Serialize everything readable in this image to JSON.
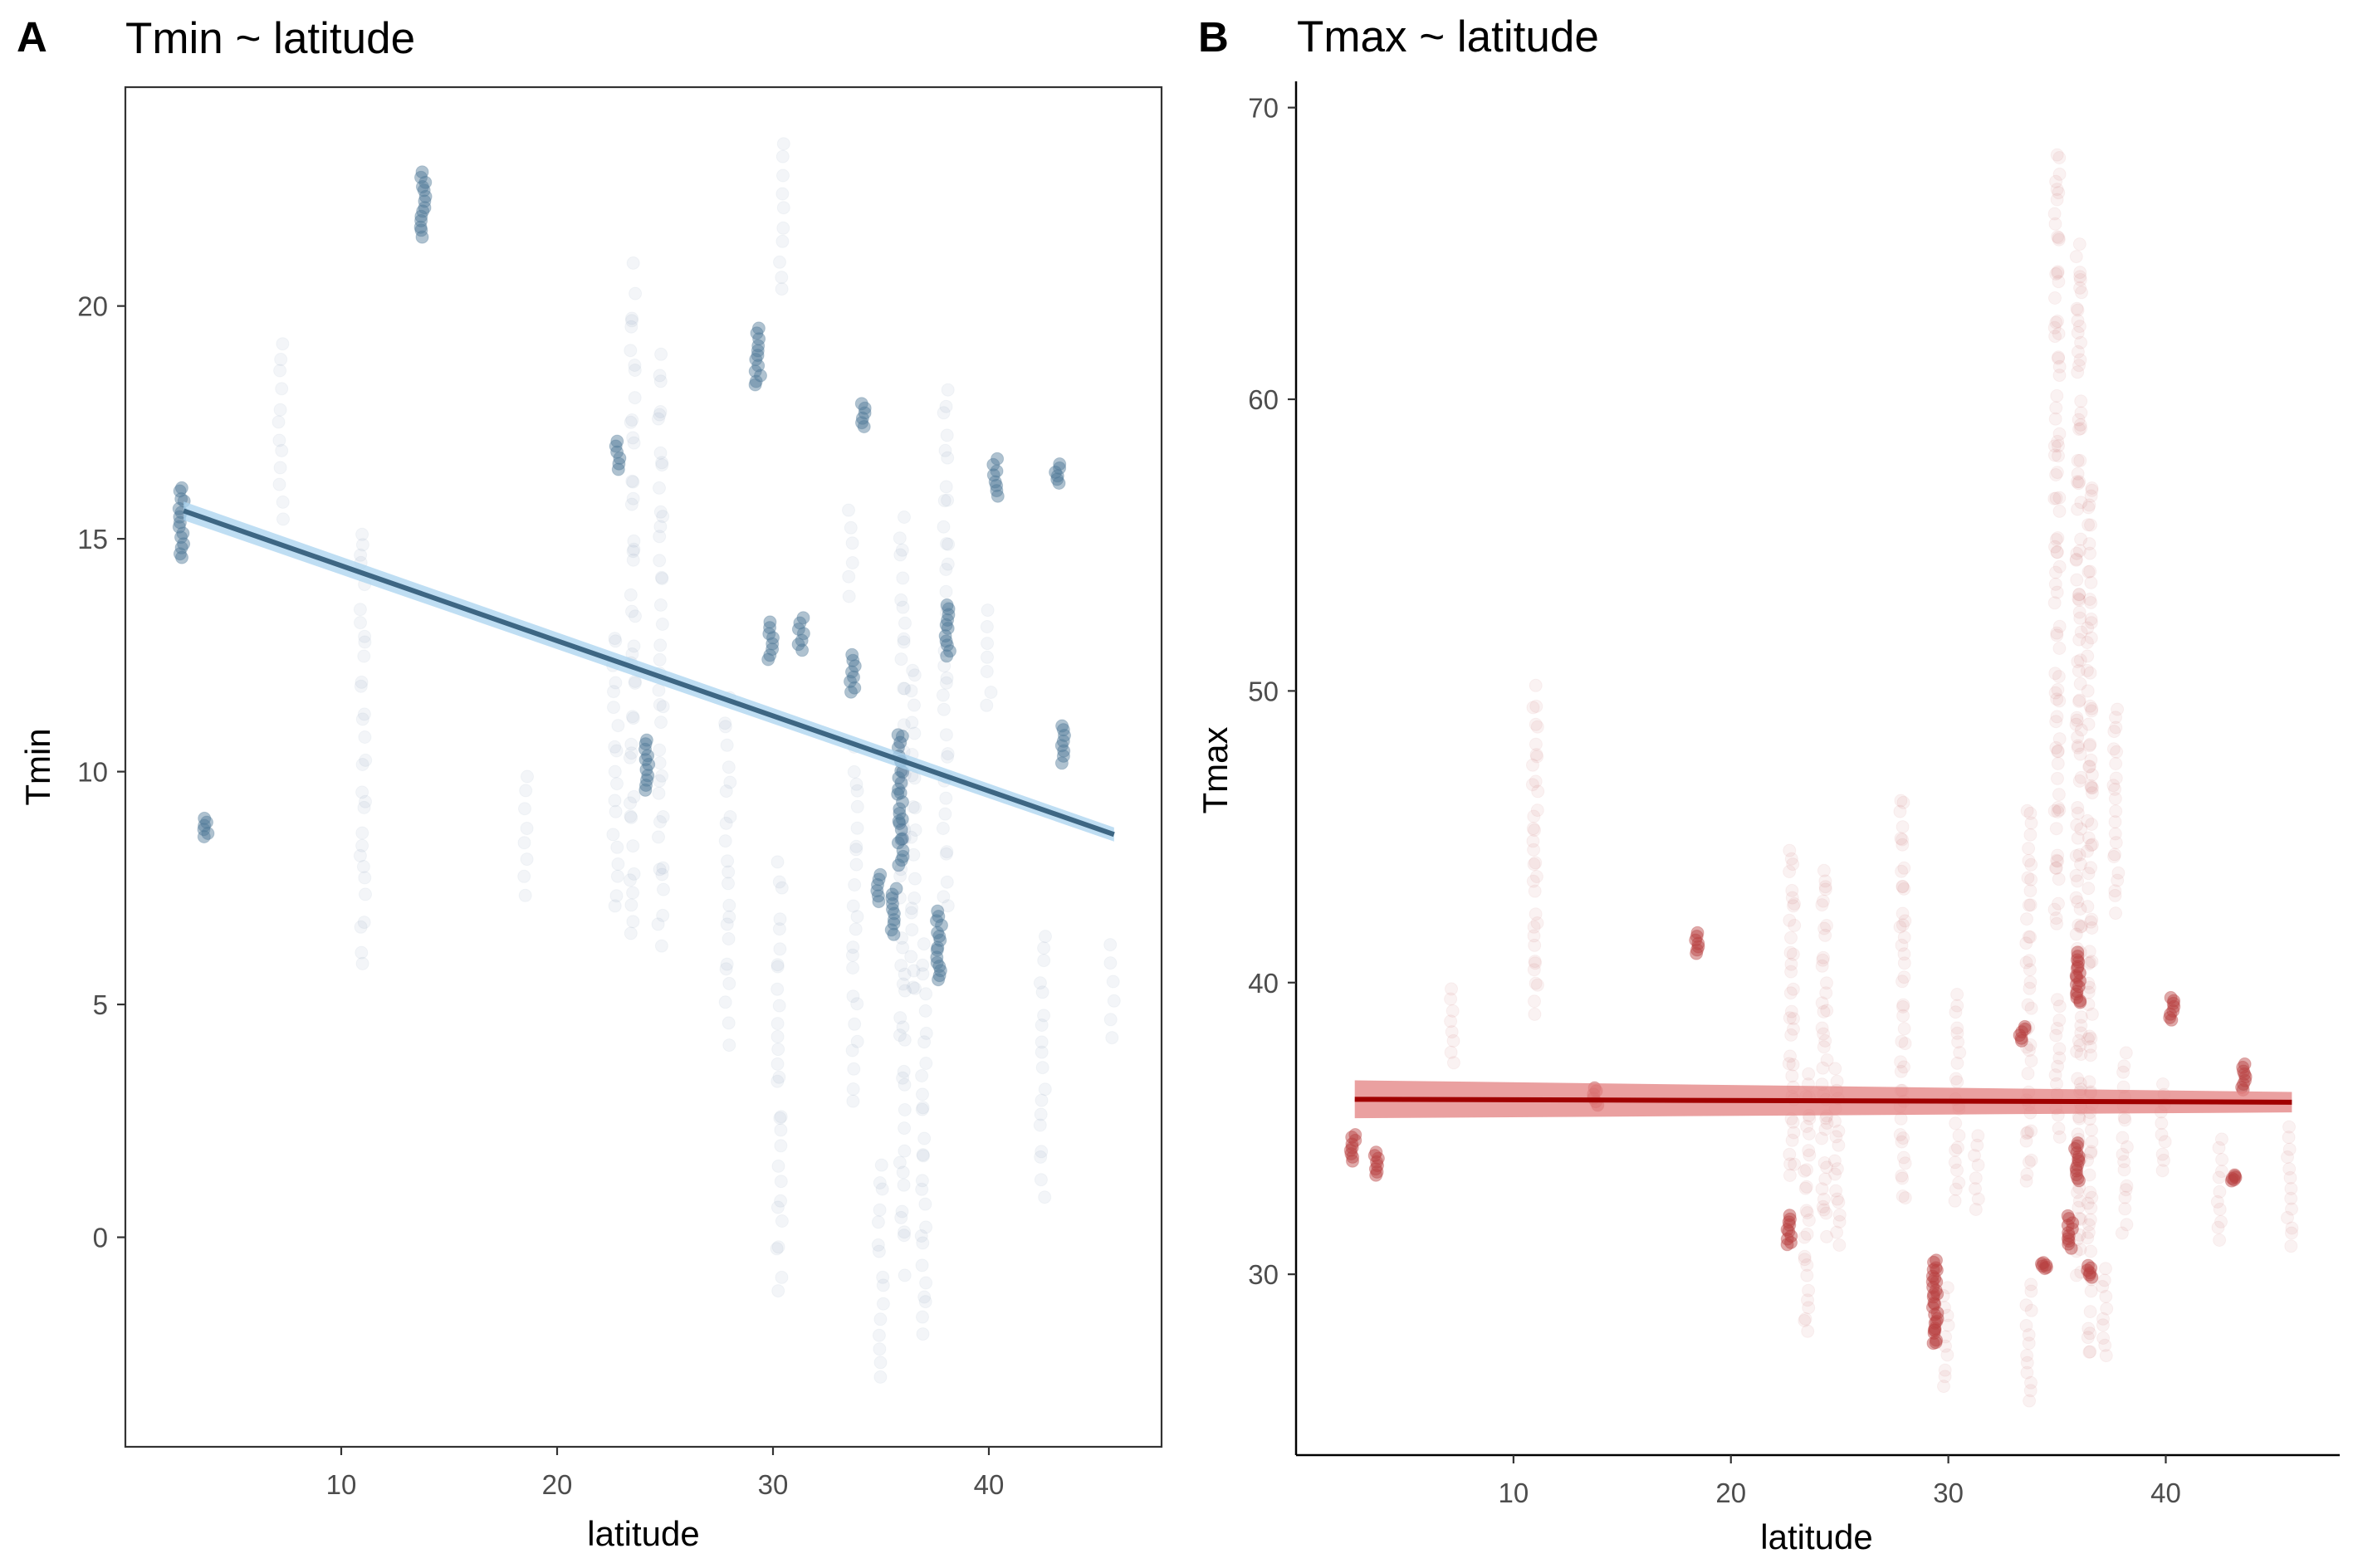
{
  "chart_data": [
    {
      "tag": "A",
      "type": "scatter",
      "title": "Tmin ~ latitude",
      "xlabel": "latitude",
      "ylabel": "Tmin",
      "xlim": [
        0,
        48
      ],
      "ylim": [
        -4.5,
        24.7
      ],
      "xticks": [
        10,
        20,
        30,
        40
      ],
      "yticks": [
        0,
        5,
        10,
        15,
        20
      ],
      "panel_border": true,
      "grid": false,
      "point_color": "#4e7896",
      "fit_line_color": "#3d6683",
      "ribbon_color": "#a9d3ef",
      "fit": {
        "x": [
          2.7,
          45.8
        ],
        "y": [
          15.6,
          8.65
        ],
        "se": [
          0.2,
          0.15
        ]
      },
      "clusters": [
        {
          "x": 2.6,
          "ymin": 14.6,
          "ymax": 16.1,
          "dense": true
        },
        {
          "x": 3.7,
          "ymin": 8.6,
          "ymax": 9.0,
          "dense": true
        },
        {
          "x": 7.2,
          "ymin": 15.5,
          "ymax": 19.2,
          "dense": false
        },
        {
          "x": 11.0,
          "ymin": 5.9,
          "ymax": 15.3,
          "dense": false
        },
        {
          "x": 13.8,
          "ymin": 21.5,
          "ymax": 22.9,
          "dense": true
        },
        {
          "x": 18.5,
          "ymin": 7.4,
          "ymax": 9.9,
          "dense": false
        },
        {
          "x": 22.7,
          "ymin": 7.0,
          "ymax": 13.0,
          "dense": false
        },
        {
          "x": 22.8,
          "ymin": 16.5,
          "ymax": 17.1,
          "dense": true
        },
        {
          "x": 23.5,
          "ymin": 6.5,
          "ymax": 20.7,
          "dense": false
        },
        {
          "x": 24.2,
          "ymin": 9.6,
          "ymax": 10.7,
          "dense": true
        },
        {
          "x": 24.8,
          "ymin": 6.3,
          "ymax": 19.0,
          "dense": false
        },
        {
          "x": 27.9,
          "ymin": 4.3,
          "ymax": 11.5,
          "dense": false
        },
        {
          "x": 29.3,
          "ymin": 18.3,
          "ymax": 19.5,
          "dense": true
        },
        {
          "x": 29.9,
          "ymin": 12.4,
          "ymax": 13.2,
          "dense": true
        },
        {
          "x": 30.3,
          "ymin": -1.1,
          "ymax": 8.0,
          "dense": false
        },
        {
          "x": 30.4,
          "ymin": 20.3,
          "ymax": 23.5,
          "dense": false
        },
        {
          "x": 31.3,
          "ymin": 12.6,
          "ymax": 13.3,
          "dense": true
        },
        {
          "x": 33.6,
          "ymin": 13.8,
          "ymax": 15.6,
          "dense": false
        },
        {
          "x": 33.7,
          "ymin": 11.7,
          "ymax": 12.5,
          "dense": true
        },
        {
          "x": 33.8,
          "ymin": 3.0,
          "ymax": 10.5,
          "dense": false
        },
        {
          "x": 34.2,
          "ymin": 17.4,
          "ymax": 17.9,
          "dense": true
        },
        {
          "x": 34.9,
          "ymin": 7.2,
          "ymax": 7.8,
          "dense": true
        },
        {
          "x": 35.0,
          "ymin": -3.1,
          "ymax": 1.6,
          "dense": false
        },
        {
          "x": 35.6,
          "ymin": 6.5,
          "ymax": 7.5,
          "dense": true
        },
        {
          "x": 35.9,
          "ymin": 8.0,
          "ymax": 10.8,
          "dense": true
        },
        {
          "x": 36.0,
          "ymin": -0.5,
          "ymax": 15.4,
          "dense": false
        },
        {
          "x": 36.5,
          "ymin": 5.2,
          "ymax": 12.3,
          "dense": false
        },
        {
          "x": 37.0,
          "ymin": -2.2,
          "ymax": 6.1,
          "dense": false
        },
        {
          "x": 37.7,
          "ymin": 5.5,
          "ymax": 7.0,
          "dense": true
        },
        {
          "x": 38.0,
          "ymin": 7.0,
          "ymax": 18.3,
          "dense": false
        },
        {
          "x": 38.1,
          "ymin": 12.5,
          "ymax": 13.6,
          "dense": true
        },
        {
          "x": 40.0,
          "ymin": 11.4,
          "ymax": 13.5,
          "dense": false
        },
        {
          "x": 40.3,
          "ymin": 15.9,
          "ymax": 16.7,
          "dense": true
        },
        {
          "x": 42.5,
          "ymin": 1.0,
          "ymax": 6.5,
          "dense": false
        },
        {
          "x": 43.2,
          "ymin": 16.2,
          "ymax": 16.6,
          "dense": true
        },
        {
          "x": 43.5,
          "ymin": 10.2,
          "ymax": 11.0,
          "dense": true
        },
        {
          "x": 45.7,
          "ymin": 4.3,
          "ymax": 6.3,
          "dense": false
        }
      ]
    },
    {
      "tag": "B",
      "type": "scatter",
      "title": "Tmax ~ latitude",
      "xlabel": "latitude",
      "ylabel": "Tmax",
      "xlim": [
        0,
        48
      ],
      "ylim": [
        23.8,
        70.9
      ],
      "xticks": [
        10,
        20,
        30,
        40
      ],
      "yticks": [
        30,
        40,
        50,
        60,
        70
      ],
      "panel_border": false,
      "grid": false,
      "point_color": "#b84040",
      "fit_line_color": "#a00000",
      "ribbon_color": "#e38080",
      "fit": {
        "x": [
          2.7,
          45.8
        ],
        "y": [
          36.0,
          35.9
        ],
        "se": [
          0.65,
          0.35
        ]
      },
      "clusters": [
        {
          "x": 2.6,
          "ymin": 33.9,
          "ymax": 34.8,
          "dense": true
        },
        {
          "x": 3.7,
          "ymin": 33.4,
          "ymax": 34.2,
          "dense": true
        },
        {
          "x": 7.2,
          "ymin": 37.2,
          "ymax": 39.8,
          "dense": false
        },
        {
          "x": 11.0,
          "ymin": 39.0,
          "ymax": 50.0,
          "dense": false
        },
        {
          "x": 13.8,
          "ymin": 35.8,
          "ymax": 36.4,
          "dense": true
        },
        {
          "x": 18.5,
          "ymin": 41.0,
          "ymax": 41.7,
          "dense": true
        },
        {
          "x": 22.7,
          "ymin": 31.0,
          "ymax": 32.0,
          "dense": true
        },
        {
          "x": 22.8,
          "ymin": 33.2,
          "ymax": 44.7,
          "dense": false
        },
        {
          "x": 23.5,
          "ymin": 27.9,
          "ymax": 36.9,
          "dense": false
        },
        {
          "x": 24.3,
          "ymin": 31.5,
          "ymax": 44.0,
          "dense": false
        },
        {
          "x": 24.9,
          "ymin": 31.0,
          "ymax": 37.0,
          "dense": false
        },
        {
          "x": 27.9,
          "ymin": 32.5,
          "ymax": 46.5,
          "dense": false
        },
        {
          "x": 29.4,
          "ymin": 27.6,
          "ymax": 30.5,
          "dense": true
        },
        {
          "x": 29.9,
          "ymin": 26.1,
          "ymax": 29.6,
          "dense": false
        },
        {
          "x": 30.4,
          "ymin": 32.5,
          "ymax": 39.5,
          "dense": false
        },
        {
          "x": 31.3,
          "ymin": 32.2,
          "ymax": 34.8,
          "dense": false
        },
        {
          "x": 33.4,
          "ymin": 38.0,
          "ymax": 38.5,
          "dense": true
        },
        {
          "x": 33.7,
          "ymin": 25.6,
          "ymax": 29.7,
          "dense": false
        },
        {
          "x": 33.7,
          "ymin": 33.0,
          "ymax": 46.0,
          "dense": false
        },
        {
          "x": 34.4,
          "ymin": 30.2,
          "ymax": 30.4,
          "dense": true
        },
        {
          "x": 35.0,
          "ymin": 34.7,
          "ymax": 39.5,
          "dense": false
        },
        {
          "x": 35.0,
          "ymin": 42.0,
          "ymax": 68.5,
          "dense": false
        },
        {
          "x": 35.6,
          "ymin": 30.9,
          "ymax": 32.0,
          "dense": true
        },
        {
          "x": 35.9,
          "ymin": 33.2,
          "ymax": 34.5,
          "dense": true
        },
        {
          "x": 36.0,
          "ymin": 30.0,
          "ymax": 65.5,
          "dense": false
        },
        {
          "x": 36.0,
          "ymin": 39.3,
          "ymax": 41.0,
          "dense": true
        },
        {
          "x": 36.5,
          "ymin": 27.4,
          "ymax": 57.2,
          "dense": false
        },
        {
          "x": 36.5,
          "ymin": 29.9,
          "ymax": 30.3,
          "dense": true
        },
        {
          "x": 37.2,
          "ymin": 27.2,
          "ymax": 30.2,
          "dense": false
        },
        {
          "x": 37.7,
          "ymin": 42.5,
          "ymax": 49.5,
          "dense": false
        },
        {
          "x": 38.1,
          "ymin": 31.5,
          "ymax": 37.5,
          "dense": false
        },
        {
          "x": 39.9,
          "ymin": 33.5,
          "ymax": 36.5,
          "dense": false
        },
        {
          "x": 40.3,
          "ymin": 38.7,
          "ymax": 39.5,
          "dense": true
        },
        {
          "x": 42.5,
          "ymin": 31.2,
          "ymax": 34.6,
          "dense": false
        },
        {
          "x": 43.1,
          "ymin": 33.2,
          "ymax": 33.4,
          "dense": true
        },
        {
          "x": 43.6,
          "ymin": 36.3,
          "ymax": 37.2,
          "dense": true
        },
        {
          "x": 45.7,
          "ymin": 31.0,
          "ymax": 35.0,
          "dense": false
        }
      ]
    }
  ]
}
